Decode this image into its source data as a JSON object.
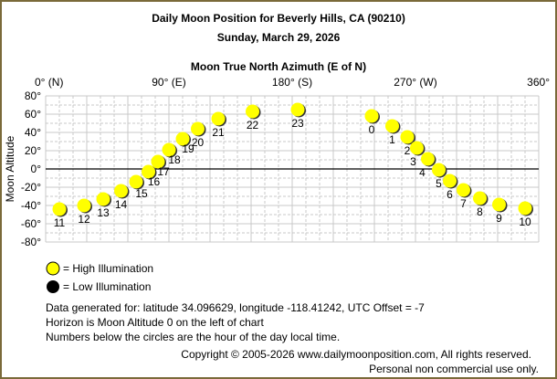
{
  "chart_data": {
    "type": "scatter",
    "title": "Daily Moon Position for Beverly Hills, CA (90210)",
    "subtitle": "Sunday, March 29, 2026",
    "xlabel": "Moon True North Azimuth (E of N)",
    "ylabel": "Moon Altitude",
    "xlim": [
      0,
      360
    ],
    "ylim": [
      -80,
      80
    ],
    "grid": true,
    "x_ticks": [
      {
        "value": 0,
        "label": "0° (N)"
      },
      {
        "value": 90,
        "label": "90° (E)"
      },
      {
        "value": 180,
        "label": "180° (S)"
      },
      {
        "value": 270,
        "label": "270° (W)"
      },
      {
        "value": 360,
        "label": "360°"
      }
    ],
    "y_ticks": [
      {
        "value": 80,
        "label": "80°"
      },
      {
        "value": 60,
        "label": "60°"
      },
      {
        "value": 40,
        "label": "40°"
      },
      {
        "value": 20,
        "label": "20°"
      },
      {
        "value": 0,
        "label": "0°"
      },
      {
        "value": -20,
        "label": "-20°"
      },
      {
        "value": -40,
        "label": "-40°"
      },
      {
        "value": -60,
        "label": "-60°"
      },
      {
        "value": -80,
        "label": "-80°"
      }
    ],
    "points": [
      {
        "hour": "0",
        "azimuth": 238,
        "altitude": 58
      },
      {
        "hour": "1",
        "azimuth": 253,
        "altitude": 47
      },
      {
        "hour": "2",
        "azimuth": 264,
        "altitude": 35
      },
      {
        "hour": "3",
        "azimuth": 271,
        "altitude": 23
      },
      {
        "hour": "4",
        "azimuth": 279,
        "altitude": 11
      },
      {
        "hour": "5",
        "azimuth": 287,
        "altitude": -1
      },
      {
        "hour": "6",
        "azimuth": 295,
        "altitude": -13
      },
      {
        "hour": "7",
        "azimuth": 305,
        "altitude": -23
      },
      {
        "hour": "8",
        "azimuth": 317,
        "altitude": -32
      },
      {
        "hour": "9",
        "azimuth": 331,
        "altitude": -39
      },
      {
        "hour": "10",
        "azimuth": 350,
        "altitude": -43
      },
      {
        "hour": "11",
        "azimuth": 10,
        "altitude": -44
      },
      {
        "hour": "12",
        "azimuth": 28,
        "altitude": -40
      },
      {
        "hour": "13",
        "azimuth": 42,
        "altitude": -33
      },
      {
        "hour": "14",
        "azimuth": 55,
        "altitude": -24
      },
      {
        "hour": "15",
        "azimuth": 66,
        "altitude": -14
      },
      {
        "hour": "16",
        "azimuth": 75,
        "altitude": -3
      },
      {
        "hour": "17",
        "azimuth": 82,
        "altitude": 8
      },
      {
        "hour": "18",
        "azimuth": 90,
        "altitude": 21
      },
      {
        "hour": "19",
        "azimuth": 100,
        "altitude": 33
      },
      {
        "hour": "20",
        "azimuth": 111,
        "altitude": 44
      },
      {
        "hour": "21",
        "azimuth": 126,
        "altitude": 55
      },
      {
        "hour": "22",
        "azimuth": 151,
        "altitude": 63
      },
      {
        "hour": "23",
        "azimuth": 184,
        "altitude": 65
      }
    ],
    "illumination": "high",
    "colors": {
      "high": "#ffff00",
      "low": "#000000",
      "border": "#7a6a3a"
    }
  },
  "legend": {
    "high": "= High Illumination",
    "low": "= Low Illumination"
  },
  "notes": [
    "Data generated for: latitude 34.096629, longitude -118.41242, UTC Offset = -7",
    "Horizon is Moon Altitude 0 on the left of chart",
    "Numbers below the circles are the hour of the day local time."
  ],
  "copyright": "Copyright © 2005-2026 www.dailymoonposition.com, All rights reserved.",
  "usage": "Personal non commercial use only."
}
